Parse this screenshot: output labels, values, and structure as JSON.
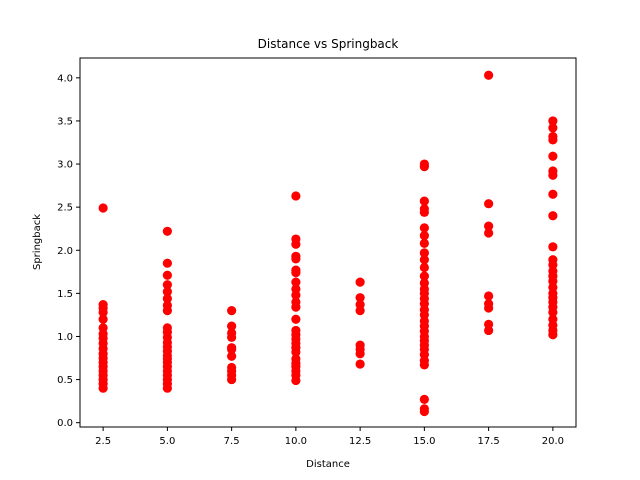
{
  "chart_data": {
    "type": "scatter",
    "title": "Distance vs Springback",
    "xlabel": "Distance",
    "ylabel": "Springback",
    "xlim": [
      1.6,
      20.9
    ],
    "ylim": [
      -0.05,
      4.23
    ],
    "xticks": [
      2.5,
      5.0,
      7.5,
      10.0,
      12.5,
      15.0,
      17.5,
      20.0
    ],
    "xtick_labels": [
      "2.5",
      "5.0",
      "7.5",
      "10.0",
      "12.5",
      "15.0",
      "17.5",
      "20.0"
    ],
    "yticks": [
      0.0,
      0.5,
      1.0,
      1.5,
      2.0,
      2.5,
      3.0,
      3.5,
      4.0
    ],
    "ytick_labels": [
      "0.0",
      "0.5",
      "1.0",
      "1.5",
      "2.0",
      "2.5",
      "3.0",
      "3.5",
      "4.0"
    ],
    "grid": false,
    "marker_color": "#ff0000",
    "series": [
      {
        "points": [
          [
            2.5,
            2.49
          ],
          [
            2.5,
            1.37
          ],
          [
            2.5,
            1.33
          ],
          [
            2.5,
            1.28
          ],
          [
            2.5,
            1.2
          ],
          [
            2.5,
            1.1
          ],
          [
            2.5,
            1.03
          ],
          [
            2.5,
            0.98
          ],
          [
            2.5,
            0.92
          ],
          [
            2.5,
            0.86
          ],
          [
            2.5,
            0.8
          ],
          [
            2.5,
            0.75
          ],
          [
            2.5,
            0.7
          ],
          [
            2.5,
            0.65
          ],
          [
            2.5,
            0.6
          ],
          [
            2.5,
            0.55
          ],
          [
            2.5,
            0.5
          ],
          [
            2.5,
            0.45
          ],
          [
            2.5,
            0.4
          ],
          [
            5.0,
            2.22
          ],
          [
            5.0,
            1.85
          ],
          [
            5.0,
            1.71
          ],
          [
            5.0,
            1.6
          ],
          [
            5.0,
            1.52
          ],
          [
            5.0,
            1.44
          ],
          [
            5.0,
            1.36
          ],
          [
            5.0,
            1.3
          ],
          [
            5.0,
            1.1
          ],
          [
            5.0,
            1.05
          ],
          [
            5.0,
            0.99
          ],
          [
            5.0,
            0.93
          ],
          [
            5.0,
            0.88
          ],
          [
            5.0,
            0.83
          ],
          [
            5.0,
            0.78
          ],
          [
            5.0,
            0.74
          ],
          [
            5.0,
            0.7
          ],
          [
            5.0,
            0.65
          ],
          [
            5.0,
            0.6
          ],
          [
            5.0,
            0.55
          ],
          [
            5.0,
            0.5
          ],
          [
            5.0,
            0.45
          ],
          [
            5.0,
            0.4
          ],
          [
            7.5,
            1.3
          ],
          [
            7.5,
            1.12
          ],
          [
            7.5,
            1.04
          ],
          [
            7.5,
            0.99
          ],
          [
            7.5,
            0.87
          ],
          [
            7.5,
            0.85
          ],
          [
            7.5,
            0.77
          ],
          [
            7.5,
            0.64
          ],
          [
            7.5,
            0.6
          ],
          [
            7.5,
            0.55
          ],
          [
            7.5,
            0.5
          ],
          [
            10.0,
            2.63
          ],
          [
            10.0,
            2.13
          ],
          [
            10.0,
            2.07
          ],
          [
            10.0,
            1.93
          ],
          [
            10.0,
            1.9
          ],
          [
            10.0,
            1.77
          ],
          [
            10.0,
            1.74
          ],
          [
            10.0,
            1.63
          ],
          [
            10.0,
            1.55
          ],
          [
            10.0,
            1.48
          ],
          [
            10.0,
            1.4
          ],
          [
            10.0,
            1.34
          ],
          [
            10.0,
            1.2
          ],
          [
            10.0,
            1.07
          ],
          [
            10.0,
            1.02
          ],
          [
            10.0,
            0.97
          ],
          [
            10.0,
            0.92
          ],
          [
            10.0,
            0.87
          ],
          [
            10.0,
            0.82
          ],
          [
            10.0,
            0.74
          ],
          [
            10.0,
            0.69
          ],
          [
            10.0,
            0.65
          ],
          [
            10.0,
            0.6
          ],
          [
            10.0,
            0.55
          ],
          [
            10.0,
            0.49
          ],
          [
            12.5,
            1.63
          ],
          [
            12.5,
            1.45
          ],
          [
            12.5,
            1.37
          ],
          [
            12.5,
            1.3
          ],
          [
            12.5,
            0.9
          ],
          [
            12.5,
            0.85
          ],
          [
            12.5,
            0.8
          ],
          [
            12.5,
            0.68
          ],
          [
            15.0,
            3.0
          ],
          [
            15.0,
            2.97
          ],
          [
            15.0,
            2.57
          ],
          [
            15.0,
            2.48
          ],
          [
            15.0,
            2.44
          ],
          [
            15.0,
            2.26
          ],
          [
            15.0,
            2.17
          ],
          [
            15.0,
            2.08
          ],
          [
            15.0,
            1.97
          ],
          [
            15.0,
            1.89
          ],
          [
            15.0,
            1.8
          ],
          [
            15.0,
            1.7
          ],
          [
            15.0,
            1.62
          ],
          [
            15.0,
            1.55
          ],
          [
            15.0,
            1.5
          ],
          [
            15.0,
            1.44
          ],
          [
            15.0,
            1.38
          ],
          [
            15.0,
            1.31
          ],
          [
            15.0,
            1.25
          ],
          [
            15.0,
            1.18
          ],
          [
            15.0,
            1.12
          ],
          [
            15.0,
            1.06
          ],
          [
            15.0,
            1.0
          ],
          [
            15.0,
            0.95
          ],
          [
            15.0,
            0.9
          ],
          [
            15.0,
            0.85
          ],
          [
            15.0,
            0.79
          ],
          [
            15.0,
            0.72
          ],
          [
            15.0,
            0.67
          ],
          [
            15.0,
            0.27
          ],
          [
            15.0,
            0.16
          ],
          [
            15.0,
            0.13
          ],
          [
            17.5,
            4.03
          ],
          [
            17.5,
            2.54
          ],
          [
            17.5,
            2.28
          ],
          [
            17.5,
            2.2
          ],
          [
            17.5,
            1.47
          ],
          [
            17.5,
            1.38
          ],
          [
            17.5,
            1.33
          ],
          [
            17.5,
            1.14
          ],
          [
            17.5,
            1.07
          ],
          [
            20.0,
            3.5
          ],
          [
            20.0,
            3.42
          ],
          [
            20.0,
            3.32
          ],
          [
            20.0,
            3.28
          ],
          [
            20.0,
            3.09
          ],
          [
            20.0,
            2.92
          ],
          [
            20.0,
            2.87
          ],
          [
            20.0,
            2.65
          ],
          [
            20.0,
            2.4
          ],
          [
            20.0,
            2.04
          ],
          [
            20.0,
            1.89
          ],
          [
            20.0,
            1.83
          ],
          [
            20.0,
            1.76
          ],
          [
            20.0,
            1.7
          ],
          [
            20.0,
            1.64
          ],
          [
            20.0,
            1.57
          ],
          [
            20.0,
            1.5
          ],
          [
            20.0,
            1.45
          ],
          [
            20.0,
            1.4
          ],
          [
            20.0,
            1.34
          ],
          [
            20.0,
            1.28
          ],
          [
            20.0,
            1.2
          ],
          [
            20.0,
            1.13
          ],
          [
            20.0,
            1.07
          ],
          [
            20.0,
            1.02
          ]
        ]
      }
    ]
  }
}
